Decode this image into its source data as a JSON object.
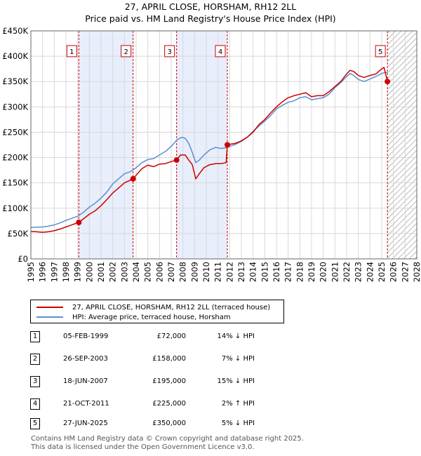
{
  "chart_data": {
    "type": "line",
    "title": "27, APRIL CLOSE, HORSHAM, RH12 2LL",
    "subtitle": "Price paid vs. HM Land Registry's House Price Index (HPI)",
    "xlim": [
      1995,
      2028
    ],
    "ylim": [
      0,
      450000
    ],
    "x_ticks": [
      "1995",
      "1996",
      "1997",
      "1998",
      "1999",
      "2000",
      "2001",
      "2002",
      "2003",
      "2004",
      "2005",
      "2006",
      "2007",
      "2008",
      "2009",
      "2010",
      "2011",
      "2012",
      "2013",
      "2014",
      "2015",
      "2016",
      "2017",
      "2018",
      "2019",
      "2020",
      "2021",
      "2022",
      "2023",
      "2024",
      "2025",
      "2026",
      "2027",
      "2028"
    ],
    "y_ticks": [
      {
        "value": 0,
        "label": "£0"
      },
      {
        "value": 50000,
        "label": "£50K"
      },
      {
        "value": 100000,
        "label": "£100K"
      },
      {
        "value": 150000,
        "label": "£150K"
      },
      {
        "value": 200000,
        "label": "£200K"
      },
      {
        "value": 250000,
        "label": "£250K"
      },
      {
        "value": 300000,
        "label": "£300K"
      },
      {
        "value": 350000,
        "label": "£350K"
      },
      {
        "value": 400000,
        "label": "£400K"
      },
      {
        "value": 450000,
        "label": "£450K"
      }
    ],
    "shaded_periods": [
      [
        1999.1,
        2003.74
      ],
      [
        2007.46,
        2011.8
      ]
    ],
    "future_hatch_from": 2025.49,
    "series": [
      {
        "name": "27, APRIL CLOSE, HORSHAM, RH12 2LL (terraced house)",
        "color": "#cc0000",
        "points": [
          [
            1995,
            54000
          ],
          [
            1995.5,
            53500
          ],
          [
            1996,
            52500
          ],
          [
            1996.5,
            53500
          ],
          [
            1997,
            55500
          ],
          [
            1997.5,
            59000
          ],
          [
            1998,
            63000
          ],
          [
            1998.5,
            67000
          ],
          [
            1999.1,
            72000
          ],
          [
            1999.5,
            79000
          ],
          [
            2000,
            88000
          ],
          [
            2000.5,
            95000
          ],
          [
            2001,
            105000
          ],
          [
            2001.5,
            117000
          ],
          [
            2002,
            130000
          ],
          [
            2002.5,
            140000
          ],
          [
            2003,
            150000
          ],
          [
            2003.74,
            158000
          ],
          [
            2004,
            165000
          ],
          [
            2004.5,
            178000
          ],
          [
            2005,
            185000
          ],
          [
            2005.5,
            182000
          ],
          [
            2006,
            187000
          ],
          [
            2006.5,
            188000
          ],
          [
            2007,
            192000
          ],
          [
            2007.46,
            195000
          ],
          [
            2007.8,
            205000
          ],
          [
            2008.2,
            205000
          ],
          [
            2008.5,
            195000
          ],
          [
            2008.8,
            186000
          ],
          [
            2009.1,
            158000
          ],
          [
            2009.4,
            168000
          ],
          [
            2009.8,
            180000
          ],
          [
            2010.3,
            186000
          ],
          [
            2010.8,
            188000
          ],
          [
            2011.3,
            188000
          ],
          [
            2011.7,
            190000
          ],
          [
            2011.8,
            225000
          ],
          [
            2012,
            226000
          ],
          [
            2012.5,
            228000
          ],
          [
            2013,
            233000
          ],
          [
            2013.5,
            240000
          ],
          [
            2014,
            250000
          ],
          [
            2014.5,
            265000
          ],
          [
            2015,
            275000
          ],
          [
            2015.5,
            288000
          ],
          [
            2016,
            300000
          ],
          [
            2016.5,
            310000
          ],
          [
            2017,
            318000
          ],
          [
            2017.5,
            322000
          ],
          [
            2018,
            325000
          ],
          [
            2018.5,
            328000
          ],
          [
            2019,
            320000
          ],
          [
            2019.5,
            322000
          ],
          [
            2020,
            322000
          ],
          [
            2020.5,
            330000
          ],
          [
            2021,
            340000
          ],
          [
            2021.5,
            350000
          ],
          [
            2022,
            365000
          ],
          [
            2022.3,
            372000
          ],
          [
            2022.6,
            370000
          ],
          [
            2023,
            362000
          ],
          [
            2023.5,
            358000
          ],
          [
            2024,
            362000
          ],
          [
            2024.5,
            365000
          ],
          [
            2025,
            375000
          ],
          [
            2025.2,
            378000
          ],
          [
            2025.49,
            350000
          ]
        ]
      },
      {
        "name": "HPI: Average price, terraced house, Horsham",
        "color": "#5b8fd0",
        "points": [
          [
            1995,
            62000
          ],
          [
            1995.5,
            62500
          ],
          [
            1996,
            63000
          ],
          [
            1996.5,
            64500
          ],
          [
            1997,
            67000
          ],
          [
            1997.5,
            71000
          ],
          [
            1998,
            76000
          ],
          [
            1998.5,
            80000
          ],
          [
            1999,
            84000
          ],
          [
            1999.5,
            92000
          ],
          [
            2000,
            102000
          ],
          [
            2000.5,
            110000
          ],
          [
            2001,
            120000
          ],
          [
            2001.5,
            132000
          ],
          [
            2002,
            148000
          ],
          [
            2002.5,
            158000
          ],
          [
            2003,
            168000
          ],
          [
            2003.5,
            172000
          ],
          [
            2004,
            180000
          ],
          [
            2004.5,
            190000
          ],
          [
            2005,
            196000
          ],
          [
            2005.5,
            198000
          ],
          [
            2006,
            205000
          ],
          [
            2006.5,
            212000
          ],
          [
            2007,
            222000
          ],
          [
            2007.5,
            235000
          ],
          [
            2007.9,
            240000
          ],
          [
            2008.2,
            238000
          ],
          [
            2008.5,
            228000
          ],
          [
            2008.8,
            210000
          ],
          [
            2009.1,
            190000
          ],
          [
            2009.4,
            195000
          ],
          [
            2009.8,
            205000
          ],
          [
            2010.3,
            215000
          ],
          [
            2010.8,
            220000
          ],
          [
            2011.3,
            218000
          ],
          [
            2011.8,
            220000
          ],
          [
            2012,
            222000
          ],
          [
            2012.5,
            226000
          ],
          [
            2013,
            232000
          ],
          [
            2013.5,
            240000
          ],
          [
            2014,
            252000
          ],
          [
            2014.5,
            262000
          ],
          [
            2015,
            272000
          ],
          [
            2015.5,
            283000
          ],
          [
            2016,
            296000
          ],
          [
            2016.5,
            303000
          ],
          [
            2017,
            309000
          ],
          [
            2017.5,
            312000
          ],
          [
            2018,
            318000
          ],
          [
            2018.5,
            320000
          ],
          [
            2019,
            314000
          ],
          [
            2019.5,
            316000
          ],
          [
            2020,
            318000
          ],
          [
            2020.5,
            325000
          ],
          [
            2021,
            338000
          ],
          [
            2021.5,
            348000
          ],
          [
            2022,
            360000
          ],
          [
            2022.3,
            366000
          ],
          [
            2022.6,
            362000
          ],
          [
            2023,
            354000
          ],
          [
            2023.5,
            350000
          ],
          [
            2024,
            355000
          ],
          [
            2024.5,
            360000
          ],
          [
            2025,
            366000
          ],
          [
            2025.3,
            368000
          ],
          [
            2025.49,
            368000
          ]
        ]
      }
    ],
    "sale_markers": [
      {
        "label": "1",
        "x": 1999.1,
        "y": 72000
      },
      {
        "label": "2",
        "x": 2003.74,
        "y": 158000
      },
      {
        "label": "3",
        "x": 2007.46,
        "y": 195000
      },
      {
        "label": "4",
        "x": 2011.8,
        "y": 225000
      },
      {
        "label": "5",
        "x": 2025.49,
        "y": 350000
      }
    ],
    "marker_box_value": 410000
  },
  "legend": {
    "property_label": "27, APRIL CLOSE, HORSHAM, RH12 2LL (terraced house)",
    "hpi_label": "HPI: Average price, terraced house, Horsham"
  },
  "sales": [
    {
      "num": "1",
      "date": "05-FEB-1999",
      "price": "£72,000",
      "hpi": "14% ↓ HPI"
    },
    {
      "num": "2",
      "date": "26-SEP-2003",
      "price": "£158,000",
      "hpi": "7% ↓ HPI"
    },
    {
      "num": "3",
      "date": "18-JUN-2007",
      "price": "£195,000",
      "hpi": "15% ↓ HPI"
    },
    {
      "num": "4",
      "date": "21-OCT-2011",
      "price": "£225,000",
      "hpi": "2% ↑ HPI"
    },
    {
      "num": "5",
      "date": "27-JUN-2025",
      "price": "£350,000",
      "hpi": "5% ↓ HPI"
    }
  ],
  "footer": {
    "line1": "Contains HM Land Registry data © Crown copyright and database right 2025.",
    "line2": "This data is licensed under the Open Government Licence v3.0."
  },
  "colors": {
    "property": "#cc0000",
    "hpi": "#5b8fd0",
    "shade": "#e8eefb",
    "grid": "#d8d8d8"
  }
}
